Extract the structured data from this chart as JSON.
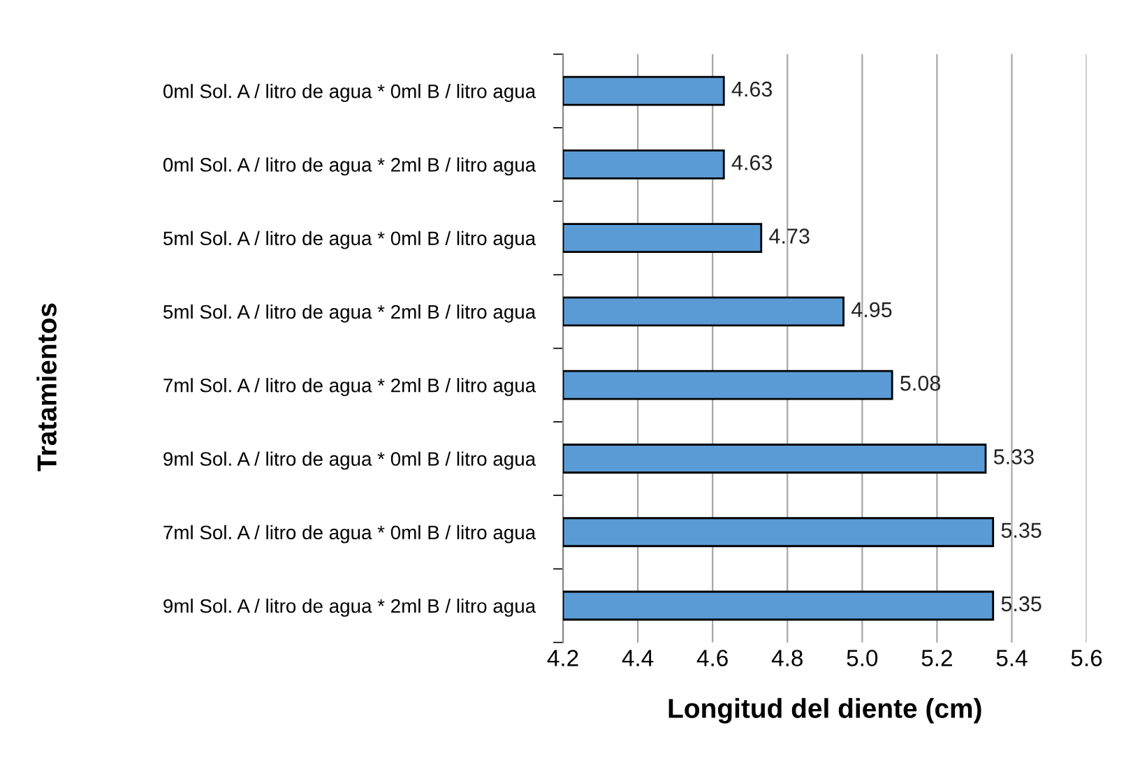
{
  "chart_data": {
    "type": "bar",
    "orientation": "horizontal",
    "xlabel": "Longitud del diente (cm)",
    "ylabel": "Tratamientos",
    "categories": [
      "0ml Sol. A / litro de agua * 0ml B / litro agua",
      "0ml Sol. A / litro de agua * 2ml B / litro agua",
      "5ml Sol. A / litro de agua * 0ml B / litro agua",
      "5ml Sol. A / litro de agua * 2ml B / litro agua",
      "7ml Sol. A / litro de agua * 2ml B / litro agua",
      "9ml Sol. A / litro de agua * 0ml B / litro agua",
      "7ml Sol. A / litro de agua * 0ml B / litro agua",
      "9ml Sol. A / litro de agua * 2ml B / litro agua"
    ],
    "values": [
      4.63,
      4.63,
      4.73,
      4.95,
      5.08,
      5.33,
      5.35,
      5.35
    ],
    "color": "#5b9bd5",
    "xlim": [
      4.2,
      5.6
    ],
    "xticks": [
      4.2,
      4.4,
      4.6,
      4.8,
      {
        "value": 5.0,
        "label": "5.0"
      },
      5.2,
      5.4,
      5.6
    ],
    "grid": "x",
    "data_labels": true
  }
}
